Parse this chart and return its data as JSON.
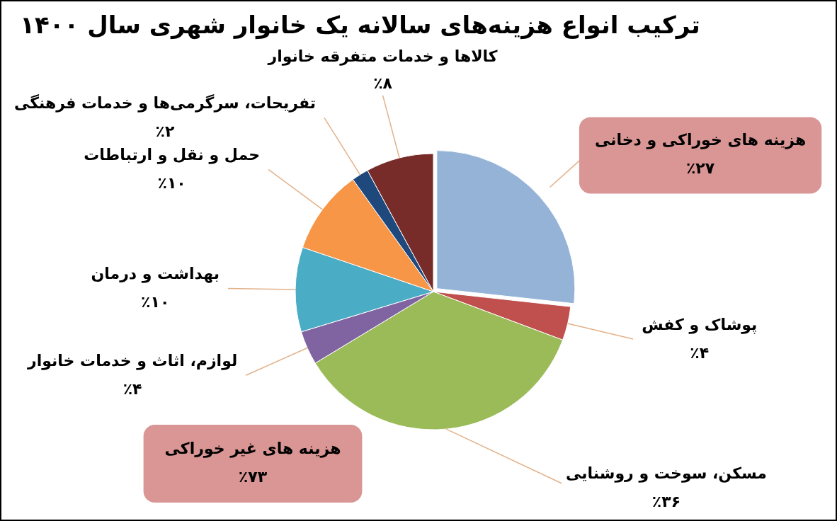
{
  "chart_data": {
    "type": "pie",
    "title": "ترکیب انواع هزینه‌های سالانه یک خانوار شهری سال ۱۴۰۰",
    "categories": [
      "هزینه های خوراکی و دخانی",
      "پوشاک و کفش",
      "مسکن، سوخت و روشنایی",
      "لوازم، اثاث و خدمات خانوار",
      "بهداشت و درمان",
      "حمل و نقل و ارتباطات",
      "تفریحات، سرگرمی‌ها و خدمات فرهنگی",
      "کالاها و خدمات متفرقه خانوار"
    ],
    "values": [
      27,
      4,
      36,
      4,
      10,
      10,
      2,
      8
    ],
    "value_labels": [
      "٪۲۷",
      "٪۴",
      "٪۳۶",
      "٪۴",
      "٪۱۰",
      "٪۱۰",
      "٪۲",
      "٪۸"
    ],
    "colors": [
      "#95b3d7",
      "#c0504d",
      "#9bbb59",
      "#8064a2",
      "#4bacc6",
      "#f79646",
      "#1f497d",
      "#772c2a"
    ],
    "annotations": [
      "هزینه های غیر خوراکی\n٪۷۳"
    ]
  }
}
